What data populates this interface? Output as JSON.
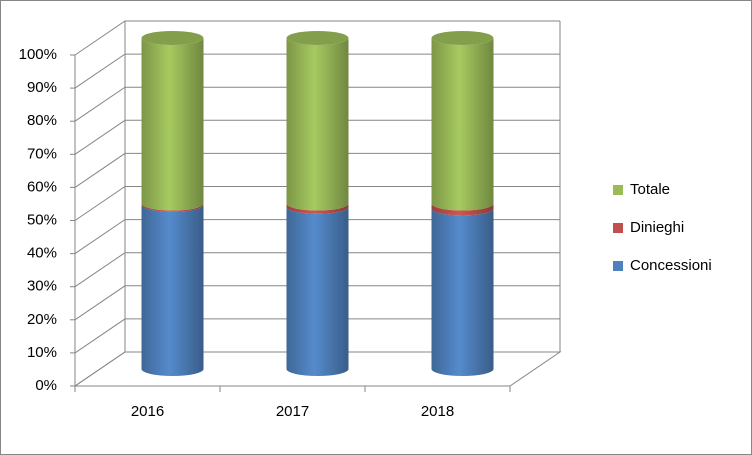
{
  "chart_data": {
    "type": "bar3d-stacked-cylinder",
    "categories": [
      "2016",
      "2017",
      "2018"
    ],
    "series": [
      {
        "name": "Concessioni",
        "color": "#4f81bd",
        "values": [
          49.6,
          49,
          48.5
        ]
      },
      {
        "name": "Dinieghi",
        "color": "#c0504d",
        "values": [
          0.4,
          1,
          1.5
        ]
      },
      {
        "name": "Totale",
        "color": "#9bbb59",
        "values": [
          50,
          50,
          50
        ]
      }
    ],
    "ylim": [
      0,
      100
    ],
    "yticks": [
      {
        "value": 0,
        "label": "0%"
      },
      {
        "value": 10,
        "label": "10%"
      },
      {
        "value": 20,
        "label": "20%"
      },
      {
        "value": 30,
        "label": "30%"
      },
      {
        "value": 40,
        "label": "40%"
      },
      {
        "value": 50,
        "label": "50%"
      },
      {
        "value": 60,
        "label": "60%"
      },
      {
        "value": 70,
        "label": "70%"
      },
      {
        "value": 80,
        "label": "80%"
      },
      {
        "value": 90,
        "label": "90%"
      },
      {
        "value": 100,
        "label": "100%"
      }
    ],
    "grid": true,
    "legend": "right"
  }
}
